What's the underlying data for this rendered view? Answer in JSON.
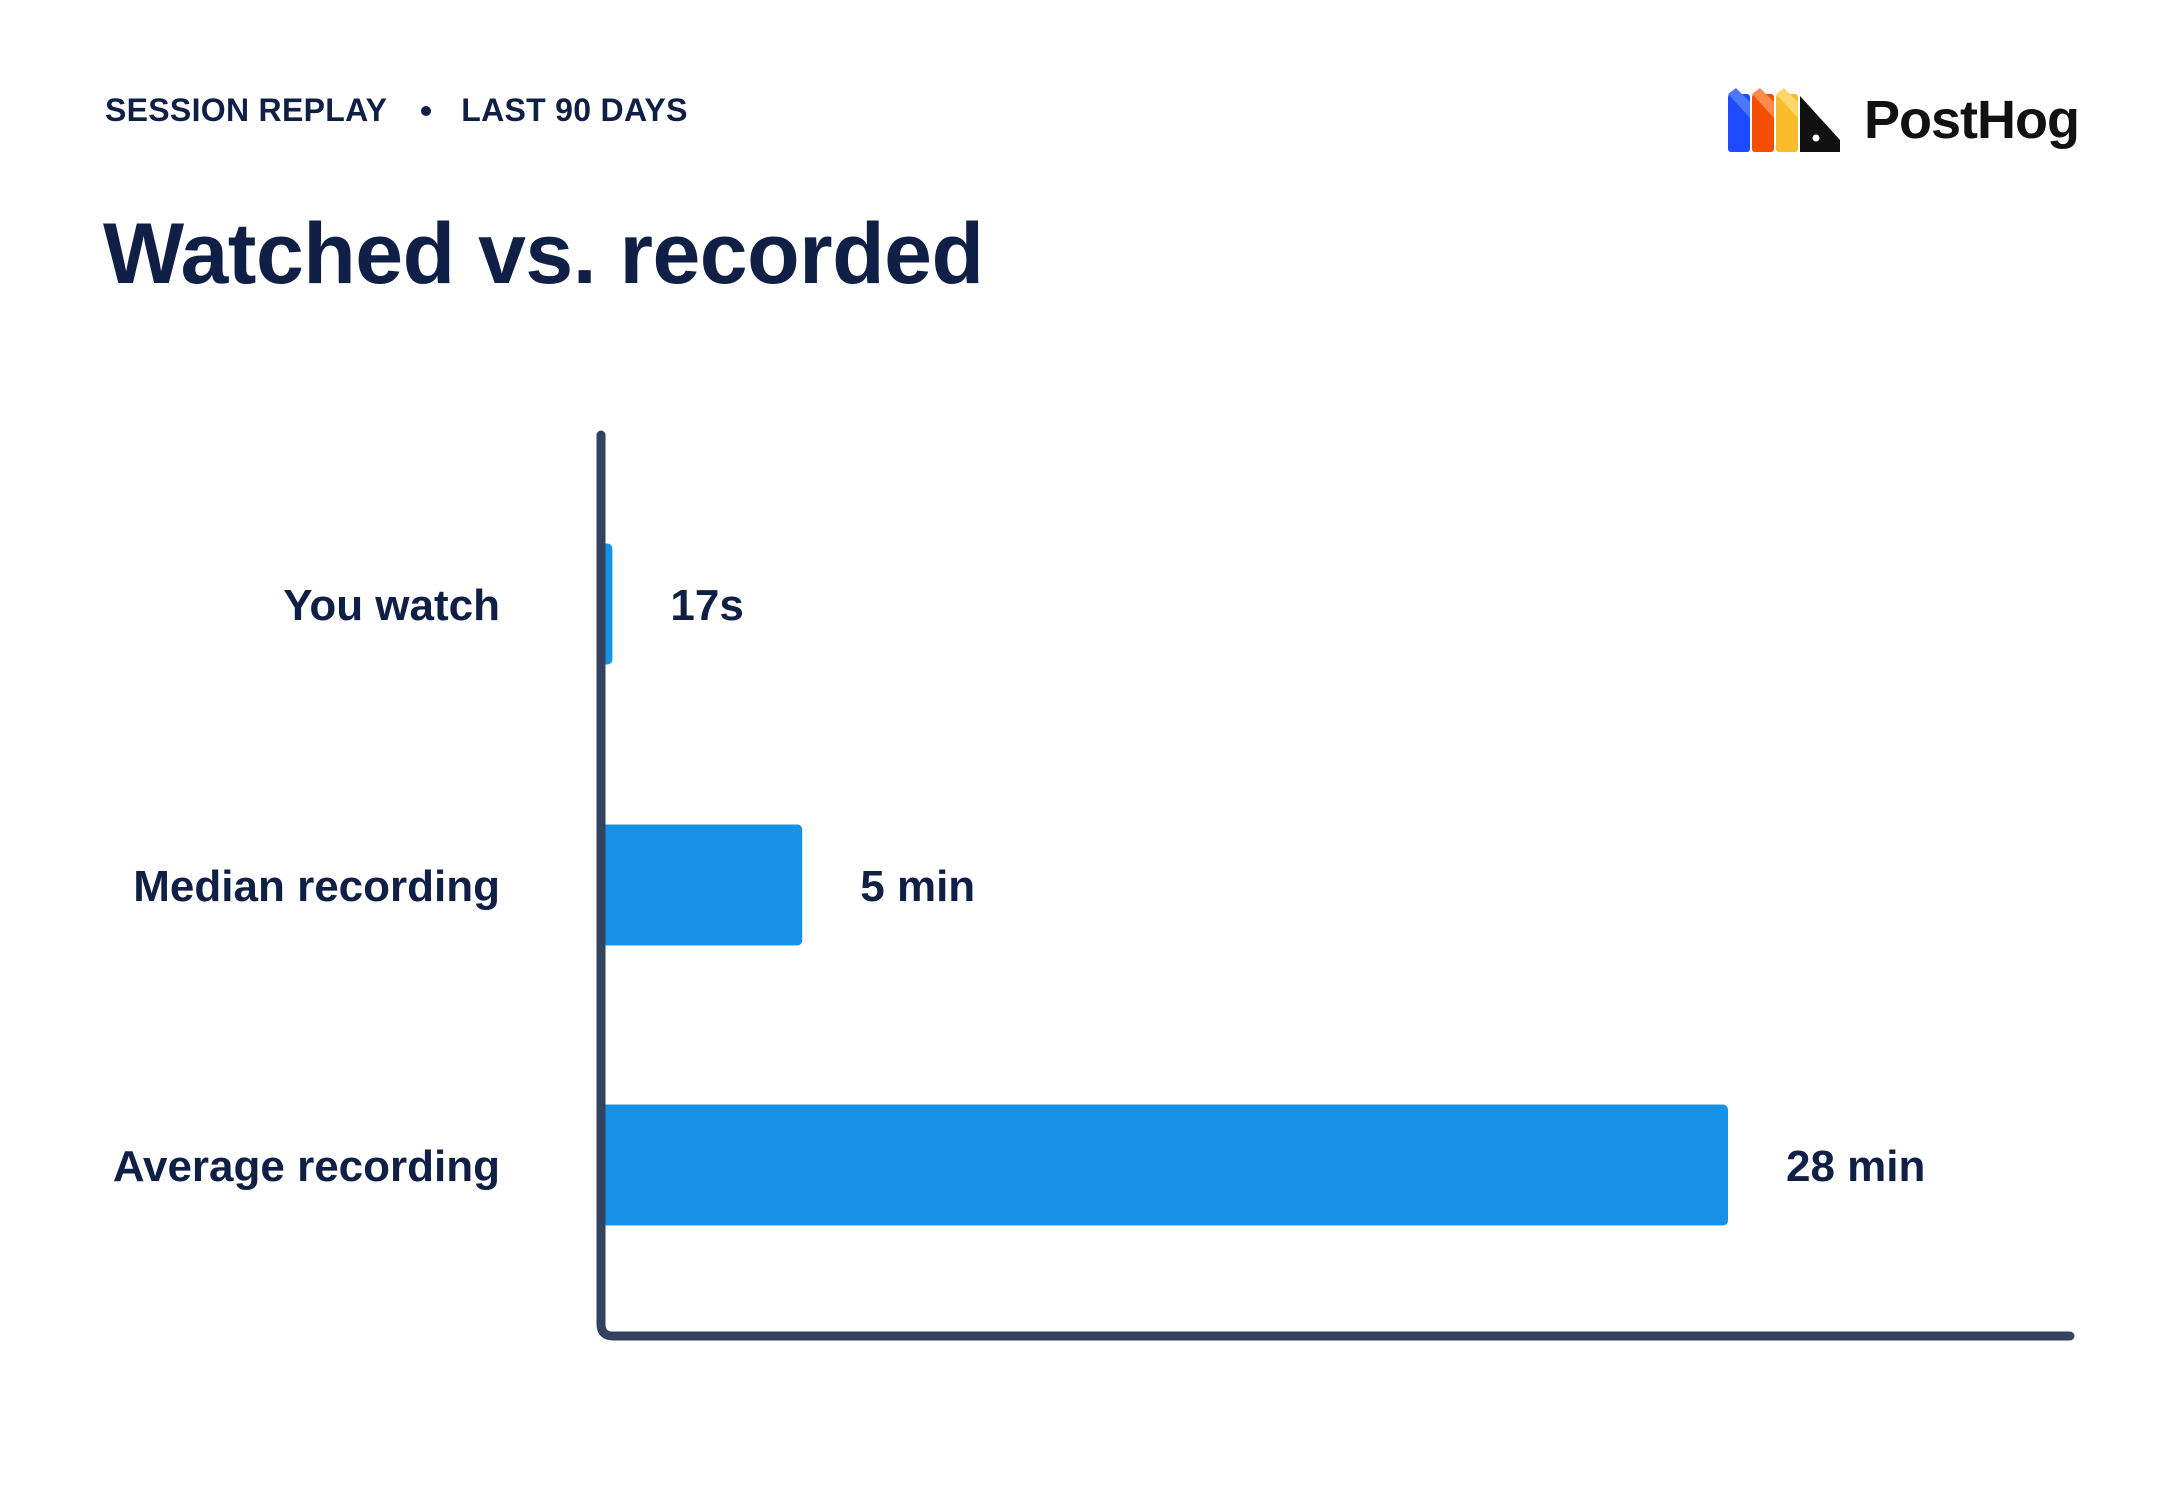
{
  "header": {
    "section": "SESSION REPLAY",
    "period": "LAST 90 DAYS"
  },
  "title": "Watched vs. recorded",
  "logo": {
    "text": "PostHog"
  },
  "colors": {
    "bar": "#1792e6",
    "axis": "#33425f",
    "text": "#0f1f45"
  },
  "chart_data": {
    "type": "bar",
    "orientation": "horizontal",
    "title": "Watched vs. recorded",
    "categories": [
      "You watch",
      "Median recording",
      "Average recording"
    ],
    "values_seconds": [
      17,
      300,
      1680
    ],
    "value_labels": [
      "17s",
      "5 min",
      "28 min"
    ],
    "xlabel": "",
    "ylabel": "",
    "grid": false,
    "legend": "none"
  }
}
